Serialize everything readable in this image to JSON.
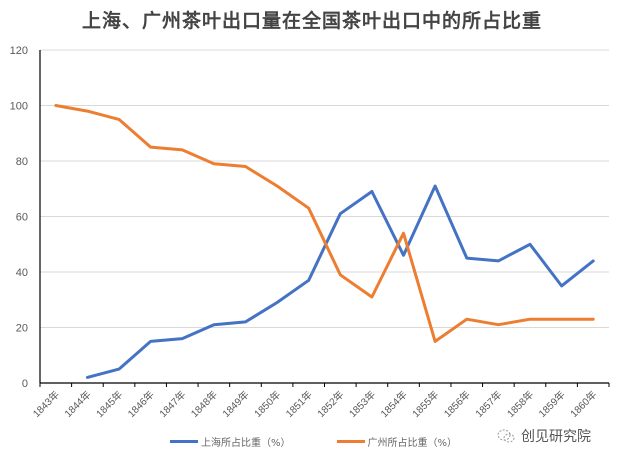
{
  "title": "上海、广州茶叶出口量在全国茶叶出口中的所占比重",
  "watermark": "创见研究院",
  "colors": {
    "shanghai": "#4472C4",
    "guangzhou": "#ED7D31",
    "grid": "#d9d9d9",
    "axis": "#000000",
    "tick_text": "#595959"
  },
  "legend": [
    {
      "label": "上海所占比重（%）",
      "color": "#4472C4"
    },
    {
      "label": "广州所占比重（%）",
      "color": "#ED7D31"
    }
  ],
  "chart_data": {
    "type": "line",
    "title": "上海、广州茶叶出口量在全国茶叶出口中的所占比重",
    "xlabel": "",
    "ylabel": "",
    "ylim": [
      0,
      120
    ],
    "yticks": [
      0,
      20,
      40,
      60,
      80,
      100,
      120
    ],
    "grid": true,
    "legend_position": "bottom",
    "categories": [
      "1843年",
      "1844年",
      "1845年",
      "1846年",
      "1847年",
      "1848年",
      "1849年",
      "1850年",
      "1851年",
      "1852年",
      "1853年",
      "1854年",
      "1855年",
      "1856年",
      "1857年",
      "1858年",
      "1859年",
      "1860年"
    ],
    "series": [
      {
        "name": "上海所占比重（%）",
        "color": "#4472C4",
        "values": [
          null,
          2,
          5,
          15,
          16,
          21,
          22,
          29,
          37,
          61,
          69,
          46,
          71,
          45,
          44,
          50,
          35,
          44
        ]
      },
      {
        "name": "广州所占比重（%）",
        "color": "#ED7D31",
        "values": [
          100,
          98,
          95,
          85,
          84,
          79,
          78,
          71,
          63,
          39,
          31,
          54,
          15,
          23,
          21,
          23,
          23,
          23
        ]
      }
    ]
  }
}
